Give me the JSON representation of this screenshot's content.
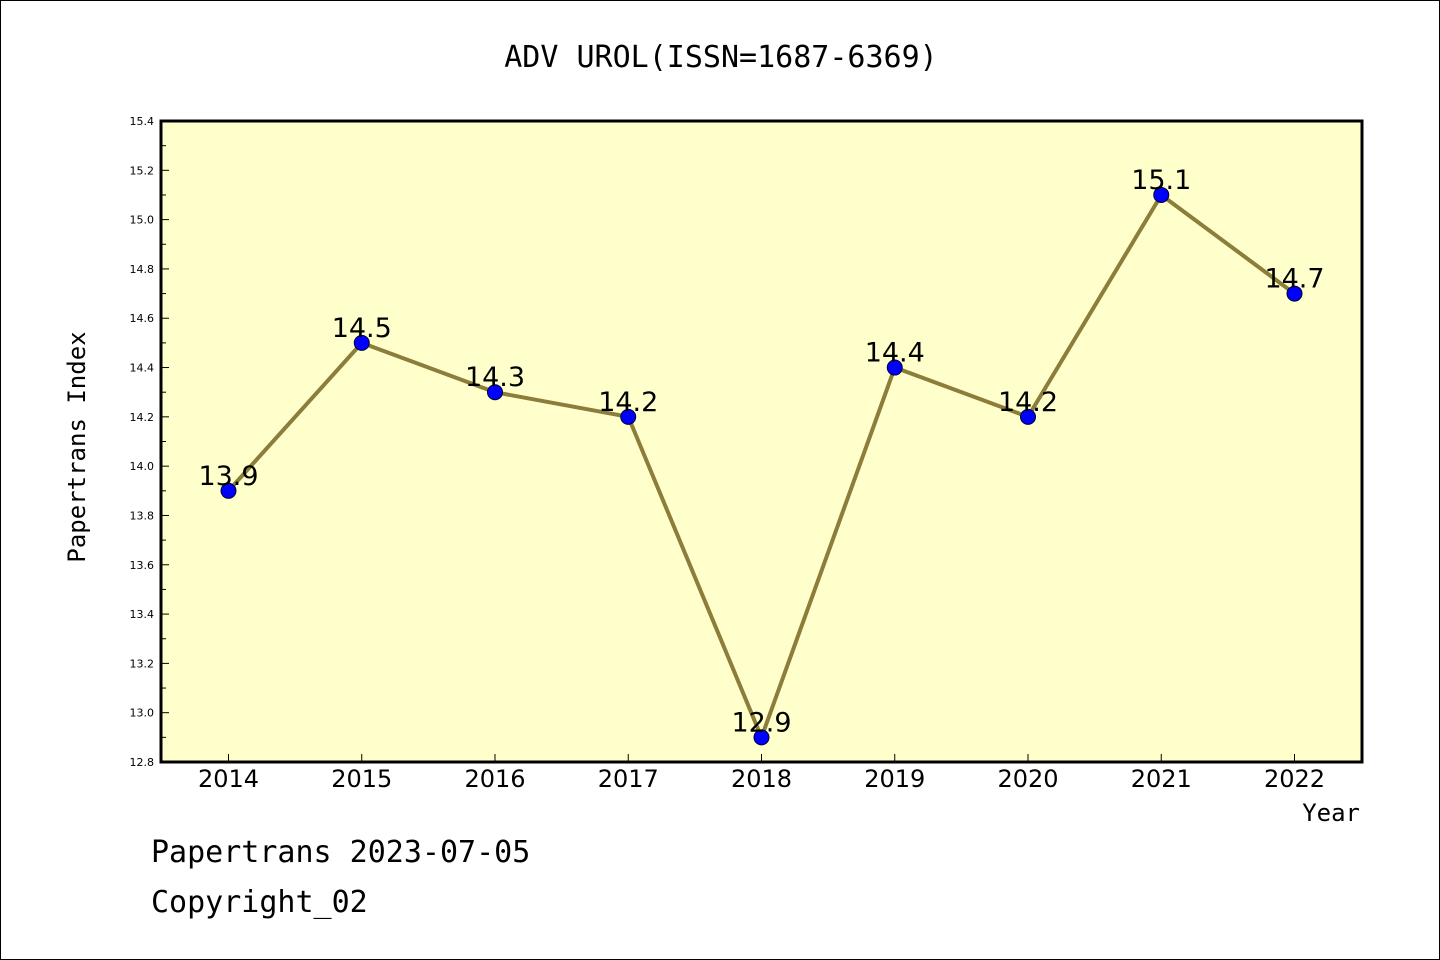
{
  "chart_data": {
    "type": "line",
    "title": "ADV UROL(ISSN=1687-6369)",
    "xlabel": "Year",
    "ylabel": "Papertrans Index",
    "categories": [
      "2014",
      "2015",
      "2016",
      "2017",
      "2018",
      "2019",
      "2020",
      "2021",
      "2022"
    ],
    "series": [
      {
        "values": [
          13.9,
          14.5,
          14.3,
          14.2,
          12.9,
          14.4,
          14.2,
          15.1,
          14.7
        ]
      }
    ],
    "data_labels": [
      "13.9",
      "14.5",
      "14.3",
      "14.2",
      "12.9",
      "14.4",
      "14.2",
      "15.1",
      "14.7"
    ],
    "ylim": [
      12.8,
      15.4
    ],
    "yticks": [
      "12.8",
      "13.0",
      "13.2",
      "13.4",
      "13.6",
      "13.8",
      "14.0",
      "14.2",
      "14.4",
      "14.6",
      "14.8",
      "15.0",
      "15.2",
      "15.4"
    ],
    "grid": false,
    "legend": "none",
    "colors": {
      "plot_background": "#ffffcc",
      "line": "#8c7d3a",
      "marker": "#0000ff"
    }
  },
  "footer": {
    "date_line": "Papertrans 2023-07-05",
    "copyright": "Copyright_02"
  }
}
